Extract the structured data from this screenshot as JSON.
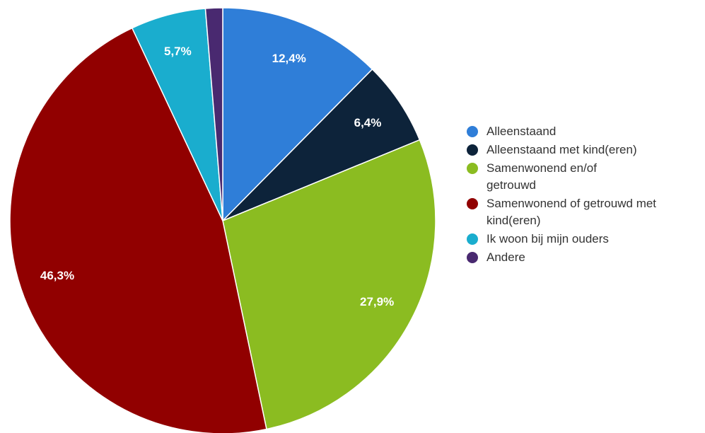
{
  "chart_data": {
    "type": "pie",
    "categories": [
      "Alleenstaand",
      "Alleenstaand met kind(eren)",
      "Samenwonend en/of getrouwd",
      "Samenwonend of getrouwd met kind(eren)",
      "Ik woon bij mijn ouders",
      "Andere"
    ],
    "values": [
      12.4,
      6.4,
      27.9,
      46.3,
      5.7,
      1.3
    ],
    "value_labels": [
      "12,4%",
      "6,4%",
      "27,9%",
      "46,3%",
      "5,7%",
      null
    ],
    "colors": [
      "#2f7ed8",
      "#0d233a",
      "#8bbc21",
      "#910000",
      "#1aadce",
      "#492970"
    ],
    "legend": "right"
  }
}
